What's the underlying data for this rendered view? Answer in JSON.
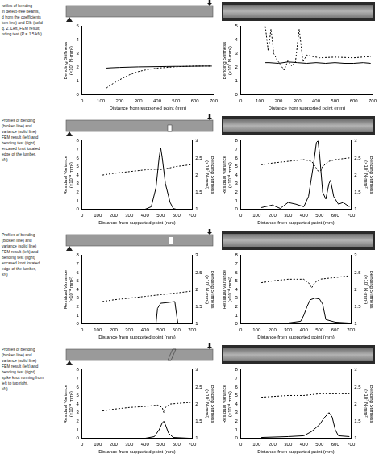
{
  "captions": [
    [
      "rofiles of bending",
      "in defect-free beams,",
      "d from the coefficients",
      "ken line) and EIb (solid",
      "q. 2. Left, FEM result;",
      "nding test (P = 1.5 kN)"
    ],
    [
      "Profiles of bending",
      "(broken line) and",
      "variance (solid line)",
      "FEM result (left) and",
      "bending test (right)",
      "encased knot located",
      "edge of the lumber,",
      "kN)"
    ],
    [
      "Profiles of bending",
      "(broken line) and",
      "variance (solid line)",
      "FEM result (left) and",
      "bending test (right)",
      "encased knot located",
      "edge of the lumber,",
      "kN)"
    ],
    [
      "Profiles of bending",
      "(broken line) and",
      "variance (solid line)",
      "FEM result (left) and",
      "bending test (right)",
      "spike knot running from",
      "left to top right,",
      "kN)"
    ]
  ],
  "chart_data": [
    {
      "type": "line",
      "x_label": "Distance from supported point (mm)",
      "y_label": "Bending Stiffness (×10⁷ N·mm²)",
      "xlim": [
        0,
        700
      ],
      "xticks": [
        0,
        100,
        200,
        300,
        400,
        500,
        600,
        700
      ],
      "ylim": [
        0,
        5
      ],
      "yticks": [
        0,
        1,
        2,
        3,
        4,
        5
      ],
      "grid": false,
      "series": [
        {
          "color": "#000000",
          "line_style": "solid",
          "x": [
            130,
            150,
            200,
            250,
            300,
            350,
            400,
            450,
            500,
            550,
            600,
            650,
            690
          ],
          "values": [
            1.95,
            1.97,
            2.0,
            2.02,
            2.04,
            2.05,
            2.06,
            2.07,
            2.08,
            2.08,
            2.09,
            2.1,
            2.1
          ]
        },
        {
          "color": "#000000",
          "line_style": "dashed",
          "x": [
            130,
            150,
            200,
            250,
            300,
            350,
            400,
            450,
            500,
            550,
            600,
            650,
            690
          ],
          "values": [
            0.5,
            0.7,
            1.1,
            1.45,
            1.7,
            1.85,
            1.95,
            2.0,
            2.05,
            2.08,
            2.1,
            2.1,
            2.1
          ]
        }
      ]
    },
    {
      "type": "line",
      "x_label": "Distance from supported point (mm)",
      "y_label": "Bending Stiffness (×10⁷ N·mm²)",
      "xlim": [
        0,
        700
      ],
      "xticks": [
        0,
        100,
        200,
        300,
        400,
        500,
        600,
        700
      ],
      "ylim": [
        0,
        5
      ],
      "yticks": [
        0,
        1,
        2,
        3,
        4,
        5
      ],
      "grid": false,
      "series": [
        {
          "color": "#000000",
          "line_style": "solid",
          "x": [
            130,
            150,
            200,
            250,
            300,
            350,
            400,
            450,
            500,
            550,
            600,
            650,
            690
          ],
          "values": [
            2.35,
            2.35,
            2.3,
            2.4,
            2.35,
            2.3,
            2.35,
            2.3,
            2.35,
            2.3,
            2.3,
            2.35,
            2.3
          ]
        },
        {
          "color": "#000000",
          "line_style": "dashed",
          "x": [
            130,
            145,
            160,
            175,
            190,
            210,
            230,
            250,
            270,
            290,
            310,
            330,
            350,
            380,
            420,
            500,
            600,
            690
          ],
          "values": [
            5,
            3.2,
            4.8,
            3.0,
            2.6,
            2.2,
            1.8,
            2.5,
            2.1,
            2.4,
            4.8,
            2.4,
            2.9,
            2.8,
            2.7,
            2.75,
            2.7,
            2.8
          ]
        }
      ]
    },
    {
      "type": "line",
      "x_label": "Distance from supported point (mm)",
      "y_label": "Residual Variance (×10⁻⁴ mm²)",
      "y2_label": "Bending Stiffness (×10⁷ N·mm²)",
      "xlim": [
        0,
        700
      ],
      "xticks": [
        0,
        100,
        200,
        300,
        400,
        500,
        600,
        700
      ],
      "ylim": [
        0,
        8
      ],
      "yticks": [
        0,
        1,
        2,
        3,
        4,
        5,
        6,
        7,
        8
      ],
      "y2lim": [
        1,
        3
      ],
      "y2ticks": [
        1,
        1.5,
        2,
        2.5,
        3
      ],
      "grid": false,
      "series": [
        {
          "color": "#000000",
          "line_style": "solid",
          "x": [
            130,
            200,
            300,
            400,
            440,
            470,
            490,
            500,
            510,
            530,
            560,
            580,
            600,
            650,
            690
          ],
          "values": [
            0,
            0,
            0,
            0,
            0.3,
            2.5,
            6,
            7.2,
            6,
            3,
            0.8,
            0.1,
            0,
            0,
            0
          ]
        },
        {
          "color": "#000000",
          "line_style": "dashed",
          "axis": "y2",
          "x": [
            130,
            200,
            300,
            400,
            450,
            500,
            550,
            600,
            690
          ],
          "values": [
            2.0,
            2.05,
            2.1,
            2.15,
            2.17,
            2.16,
            2.2,
            2.25,
            2.3
          ]
        }
      ]
    },
    {
      "type": "line",
      "x_label": "Distance from supported point (mm)",
      "y_label": "Residual Variance (×10⁻⁴ mm²)",
      "y2_label": "Bending Stiffness (×10⁷ N·mm²)",
      "xlim": [
        0,
        700
      ],
      "xticks": [
        0,
        100,
        200,
        300,
        400,
        500,
        600,
        700
      ],
      "ylim": [
        0,
        8
      ],
      "yticks": [
        0,
        1,
        2,
        3,
        4,
        5,
        6,
        7,
        8
      ],
      "y2lim": [
        1,
        3
      ],
      "y2ticks": [
        1,
        1.5,
        2,
        2.5,
        3
      ],
      "grid": false,
      "series": [
        {
          "color": "#000000",
          "line_style": "solid",
          "x": [
            130,
            200,
            250,
            300,
            350,
            400,
            430,
            460,
            480,
            490,
            500,
            520,
            540,
            560,
            570,
            590,
            620,
            650,
            690
          ],
          "values": [
            0.2,
            0.5,
            0.1,
            0.8,
            0.6,
            0.3,
            1.5,
            5,
            7.8,
            8,
            6.5,
            2,
            1.2,
            3,
            3.4,
            1.5,
            0.6,
            0.8,
            0.3
          ]
        },
        {
          "color": "#000000",
          "line_style": "dashed",
          "axis": "y2",
          "x": [
            130,
            200,
            300,
            400,
            450,
            480,
            500,
            520,
            560,
            600,
            690
          ],
          "values": [
            2.3,
            2.35,
            2.4,
            2.45,
            2.4,
            2.2,
            2.05,
            2.25,
            2.4,
            2.45,
            2.5
          ]
        }
      ]
    },
    {
      "type": "line",
      "x_label": "Distance from supported point (mm)",
      "y_label": "Residual Variance (×10⁻⁴ mm²)",
      "y2_label": "Bending Stiffness (×10⁷ N·mm²)",
      "xlim": [
        0,
        700
      ],
      "xticks": [
        0,
        100,
        200,
        300,
        400,
        500,
        600,
        700
      ],
      "ylim": [
        0,
        8
      ],
      "yticks": [
        0,
        1,
        2,
        3,
        4,
        5,
        6,
        7,
        8
      ],
      "y2lim": [
        1,
        3
      ],
      "y2ticks": [
        1,
        1.5,
        2,
        2.5,
        3
      ],
      "grid": false,
      "series": [
        {
          "color": "#000000",
          "line_style": "solid",
          "x": [
            130,
            400,
            470,
            480,
            500,
            550,
            590,
            600,
            610,
            690
          ],
          "values": [
            0,
            0,
            0,
            1.8,
            2.4,
            2.5,
            2.6,
            1.2,
            0,
            0
          ]
        },
        {
          "color": "#000000",
          "line_style": "dashed",
          "axis": "y2",
          "x": [
            130,
            200,
            300,
            400,
            500,
            600,
            690
          ],
          "values": [
            1.65,
            1.7,
            1.75,
            1.8,
            1.85,
            1.9,
            1.95
          ]
        }
      ]
    },
    {
      "type": "line",
      "x_label": "Distance from supported point (mm)",
      "y_label": "Residual Variance (×10⁻⁴ mm²)",
      "y2_label": "Bending Stiffness (×10⁷ N·mm²)",
      "xlim": [
        0,
        700
      ],
      "xticks": [
        0,
        100,
        200,
        300,
        400,
        500,
        600,
        700
      ],
      "ylim": [
        0,
        8
      ],
      "yticks": [
        0,
        1,
        2,
        3,
        4,
        5,
        6,
        7,
        8
      ],
      "y2lim": [
        1,
        3
      ],
      "y2ticks": [
        1,
        1.5,
        2,
        2.5,
        3
      ],
      "grid": false,
      "series": [
        {
          "color": "#000000",
          "line_style": "solid",
          "x": [
            130,
            300,
            380,
            400,
            420,
            440,
            470,
            500,
            520,
            540,
            600,
            690
          ],
          "values": [
            0,
            0.1,
            0.3,
            1,
            2,
            2.8,
            3,
            2.9,
            2.3,
            0.5,
            0.2,
            0.1
          ]
        },
        {
          "color": "#000000",
          "line_style": "dashed",
          "axis": "y2",
          "x": [
            130,
            200,
            300,
            400,
            430,
            450,
            470,
            500,
            600,
            690
          ],
          "values": [
            2.2,
            2.25,
            2.3,
            2.3,
            2.2,
            2.05,
            2.2,
            2.3,
            2.35,
            2.4
          ]
        }
      ]
    },
    {
      "type": "line",
      "x_label": "Distance from supported point (mm)",
      "y_label": "Residual Variance (×10⁻⁴ mm²)",
      "y2_label": "Bending Stiffness (×10⁷ N·mm²)",
      "xlim": [
        0,
        700
      ],
      "xticks": [
        0,
        100,
        200,
        300,
        400,
        500,
        600,
        700
      ],
      "ylim": [
        0,
        8
      ],
      "yticks": [
        0,
        1,
        2,
        3,
        4,
        5,
        6,
        7,
        8
      ],
      "y2lim": [
        1,
        3
      ],
      "y2ticks": [
        1,
        1.5,
        2,
        2.5,
        3
      ],
      "grid": false,
      "series": [
        {
          "color": "#000000",
          "line_style": "solid",
          "x": [
            130,
            400,
            460,
            490,
            510,
            520,
            530,
            550,
            580,
            690
          ],
          "values": [
            0,
            0,
            0.2,
            1,
            1.8,
            2,
            1.6,
            0.6,
            0.1,
            0
          ]
        },
        {
          "color": "#000000",
          "line_style": "dashed",
          "axis": "y2",
          "x": [
            130,
            200,
            300,
            400,
            480,
            510,
            520,
            530,
            560,
            690
          ],
          "values": [
            1.8,
            1.85,
            1.9,
            1.93,
            1.97,
            1.9,
            1.75,
            1.9,
            2.0,
            2.05
          ]
        }
      ]
    },
    {
      "type": "line",
      "x_label": "Distance from supported point (mm)",
      "y_label": "Residual Variance (×10⁻⁴ mm²)",
      "y2_label": "Bending Stiffness (×10⁷ N·mm²)",
      "xlim": [
        0,
        700
      ],
      "xticks": [
        0,
        100,
        200,
        300,
        400,
        500,
        600,
        700
      ],
      "ylim": [
        0,
        8
      ],
      "yticks": [
        0,
        1,
        2,
        3,
        4,
        5,
        6,
        7,
        8
      ],
      "y2lim": [
        1,
        3
      ],
      "y2ticks": [
        1,
        1.5,
        2,
        2.5,
        3
      ],
      "grid": false,
      "series": [
        {
          "color": "#000000",
          "line_style": "solid",
          "x": [
            130,
            300,
            400,
            450,
            500,
            530,
            560,
            580,
            600,
            620,
            690
          ],
          "values": [
            0.1,
            0.2,
            0.3,
            0.8,
            1.6,
            2.4,
            3,
            2.5,
            1.0,
            0.3,
            0.2
          ]
        },
        {
          "color": "#000000",
          "line_style": "dashed",
          "axis": "y2",
          "x": [
            130,
            300,
            400,
            500,
            600,
            690
          ],
          "values": [
            2.2,
            2.25,
            2.25,
            2.3,
            2.3,
            2.3
          ]
        }
      ]
    }
  ]
}
